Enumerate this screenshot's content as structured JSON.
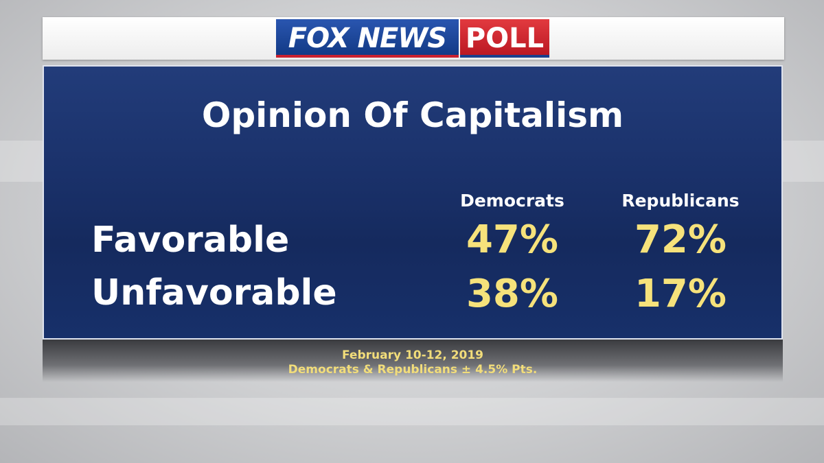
{
  "header": {
    "logo": "FOX NEWS",
    "poll": "POLL"
  },
  "title": "Opinion Of Capitalism",
  "table": {
    "columns": [
      "Democrats",
      "Republicans"
    ],
    "rows": [
      {
        "label": "Favorable",
        "values": [
          "47%",
          "72%"
        ]
      },
      {
        "label": "Unfavorable",
        "values": [
          "38%",
          "17%"
        ]
      }
    ]
  },
  "footer": [
    "February 10-12, 2019",
    "Democrats & Republicans ± 4.5% Pts."
  ]
}
